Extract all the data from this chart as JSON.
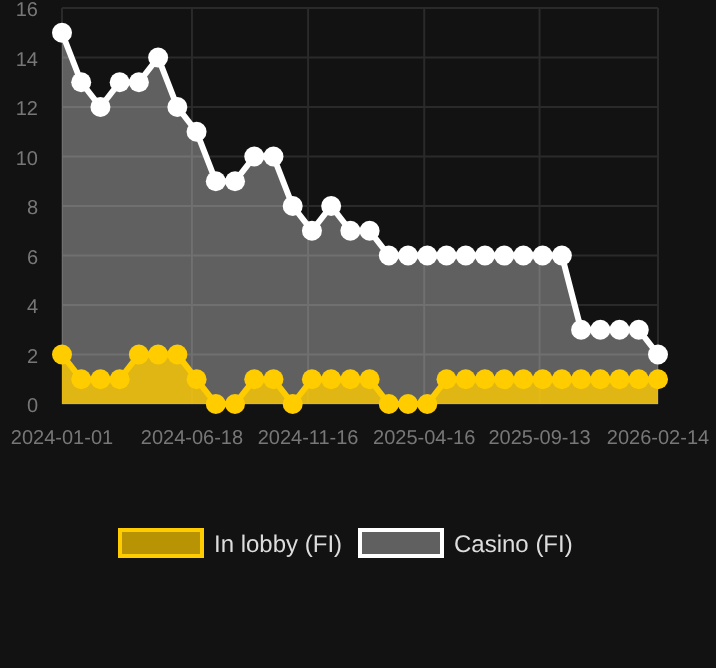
{
  "chart_data": {
    "type": "area",
    "x": [
      "2024-01-01",
      "2024-01-26",
      "2024-02-20",
      "2024-03-16",
      "2024-04-10",
      "2024-05-05",
      "2024-05-30",
      "2024-06-24",
      "2024-07-19",
      "2024-08-13",
      "2024-09-07",
      "2024-10-02",
      "2024-10-27",
      "2024-11-21",
      "2024-12-16",
      "2025-01-10",
      "2025-02-04",
      "2025-03-01",
      "2025-03-26",
      "2025-04-20",
      "2025-05-15",
      "2025-06-09",
      "2025-07-04",
      "2025-07-29",
      "2025-08-23",
      "2025-09-17",
      "2025-10-12",
      "2025-11-06",
      "2025-12-01",
      "2025-12-26",
      "2026-01-20",
      "2026-02-14"
    ],
    "series": [
      {
        "name": "In lobby (FI)",
        "color": "#ffcc00",
        "values": [
          2,
          1,
          1,
          1,
          2,
          2,
          2,
          1,
          0,
          0,
          1,
          1,
          0,
          1,
          1,
          1,
          1,
          0,
          0,
          0,
          1,
          1,
          1,
          1,
          1,
          1,
          1,
          1,
          1,
          1,
          1,
          1
        ]
      },
      {
        "name": "Casino (FI)",
        "color": "#ffffff",
        "values": [
          15,
          13,
          12,
          13,
          13,
          14,
          12,
          11,
          9,
          9,
          10,
          10,
          8,
          7,
          8,
          7,
          7,
          6,
          6,
          6,
          6,
          6,
          6,
          6,
          6,
          6,
          6,
          3,
          3,
          3,
          3,
          2
        ]
      }
    ],
    "xlim": [
      "2024-01-01",
      "2026-02-14"
    ],
    "xticks": [
      "2024-01-01",
      "2024-06-18",
      "2024-11-16",
      "2025-04-16",
      "2025-09-13",
      "2026-02-14"
    ],
    "ylim": [
      0,
      16
    ],
    "yticks": [
      0,
      2,
      4,
      6,
      8,
      10,
      12,
      14,
      16
    ],
    "grid": true,
    "legend": "bottom",
    "marker": "circle",
    "line_style": "solid"
  }
}
